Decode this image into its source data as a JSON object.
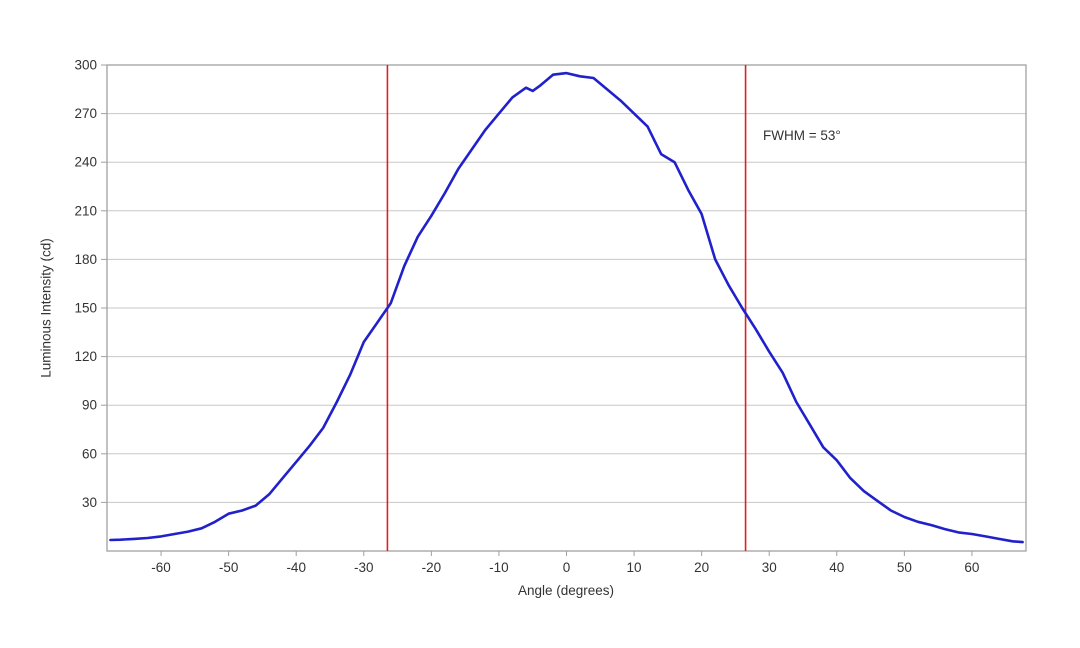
{
  "chart_data": {
    "type": "line",
    "title": "",
    "xlabel": "Angle (degrees)",
    "ylabel": "Luminous Intensity (cd)",
    "xlim": [
      -68,
      68
    ],
    "ylim": [
      0,
      300
    ],
    "x_ticks": [
      -60,
      -50,
      -40,
      -30,
      -20,
      -10,
      0,
      10,
      20,
      30,
      40,
      50,
      60
    ],
    "y_ticks": [
      30,
      60,
      90,
      120,
      150,
      180,
      210,
      240,
      270,
      300
    ],
    "grid": "horizontal",
    "legend": "none",
    "series": [
      {
        "name": "luminous-intensity-curve",
        "color": "#2121cc",
        "x": [
          -67.5,
          -66,
          -64,
          -62,
          -60,
          -58,
          -56,
          -54,
          -52,
          -50,
          -48,
          -46,
          -44,
          -42,
          -40,
          -38,
          -36,
          -34,
          -32,
          -30,
          -28,
          -26,
          -24,
          -22,
          -20,
          -18,
          -16,
          -14,
          -12,
          -10,
          -8,
          -6,
          -5,
          -4,
          -2,
          0,
          2,
          4,
          6,
          8,
          10,
          12,
          14,
          16,
          18,
          20,
          22,
          24,
          26,
          28,
          30,
          32,
          34,
          36,
          38,
          40,
          42,
          44,
          46,
          48,
          50,
          52,
          54,
          56,
          58,
          60,
          62,
          64,
          66,
          67.5
        ],
        "y": [
          6.8,
          7,
          7.5,
          8,
          9,
          10.5,
          12,
          14,
          18,
          23,
          25,
          28,
          35,
          45,
          55,
          65,
          76,
          92,
          109,
          129,
          141,
          153,
          176,
          194,
          207,
          221,
          236,
          248,
          260,
          270,
          280,
          286,
          284,
          287,
          294,
          295,
          293,
          292,
          285,
          278,
          270,
          262,
          245,
          240,
          223,
          208,
          180,
          164,
          150,
          137,
          123,
          110,
          92,
          78,
          64,
          56,
          45,
          37,
          31,
          25,
          21,
          18,
          16,
          13.5,
          11.5,
          10.5,
          9,
          7.5,
          6,
          5.5
        ]
      }
    ],
    "reference_lines": [
      {
        "name": "fwhm-left-line",
        "x": -26.5,
        "color": "#e01f1f"
      },
      {
        "name": "fwhm-right-line",
        "x": 26.5,
        "color": "#e01f1f"
      }
    ],
    "annotation": {
      "text": "FWHM = 53°"
    }
  },
  "colors": {
    "curve": "#2121cc",
    "reference_line": "#e01f1f",
    "gridline": "#c8c8c8",
    "frame": "#a0a0a0",
    "text": "#333333",
    "background": "#ffffff"
  }
}
